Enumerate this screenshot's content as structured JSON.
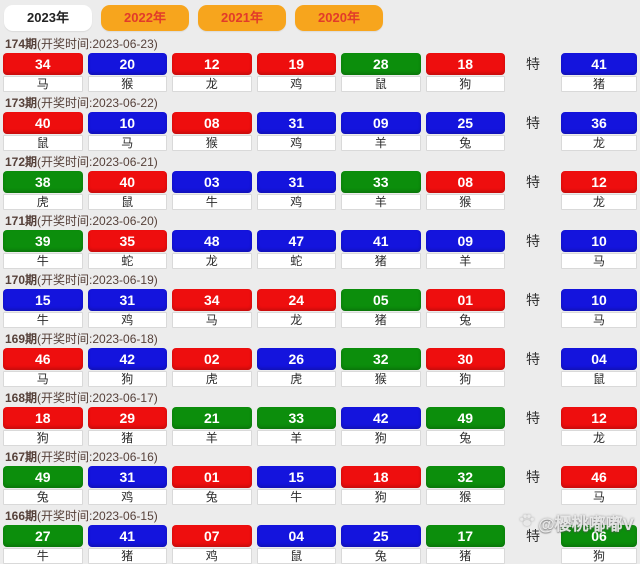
{
  "tabs": [
    {
      "label": "2023年",
      "active": true
    },
    {
      "label": "2022年",
      "active": false
    },
    {
      "label": "2021年",
      "active": false
    },
    {
      "label": "2020年",
      "active": false
    }
  ],
  "special_label": "特",
  "watermark": {
    "icon": "paw-icon",
    "text": "@樱桃嘟嘟V"
  },
  "colors": {
    "tab_bg": "#f7a51d",
    "tab_text": "#e23b2a",
    "header_text": "#56413a",
    "ball": {
      "red": "#ee0e0e",
      "blue": "#1414dd",
      "green": "#0c8e0c"
    }
  },
  "draws": [
    {
      "period": "174期",
      "time_label": "(开奖时间:2023-06-23)",
      "numbers": [
        {
          "value": "34",
          "color": "red",
          "zodiac": "马"
        },
        {
          "value": "20",
          "color": "blue",
          "zodiac": "猴"
        },
        {
          "value": "12",
          "color": "red",
          "zodiac": "龙"
        },
        {
          "value": "19",
          "color": "red",
          "zodiac": "鸡"
        },
        {
          "value": "28",
          "color": "green",
          "zodiac": "鼠"
        },
        {
          "value": "18",
          "color": "red",
          "zodiac": "狗"
        }
      ],
      "special": {
        "value": "41",
        "color": "blue",
        "zodiac": "猪"
      }
    },
    {
      "period": "173期",
      "time_label": "(开奖时间:2023-06-22)",
      "numbers": [
        {
          "value": "40",
          "color": "red",
          "zodiac": "鼠"
        },
        {
          "value": "10",
          "color": "blue",
          "zodiac": "马"
        },
        {
          "value": "08",
          "color": "red",
          "zodiac": "猴"
        },
        {
          "value": "31",
          "color": "blue",
          "zodiac": "鸡"
        },
        {
          "value": "09",
          "color": "blue",
          "zodiac": "羊"
        },
        {
          "value": "25",
          "color": "blue",
          "zodiac": "兔"
        }
      ],
      "special": {
        "value": "36",
        "color": "blue",
        "zodiac": "龙"
      }
    },
    {
      "period": "172期",
      "time_label": "(开奖时间:2023-06-21)",
      "numbers": [
        {
          "value": "38",
          "color": "green",
          "zodiac": "虎"
        },
        {
          "value": "40",
          "color": "red",
          "zodiac": "鼠"
        },
        {
          "value": "03",
          "color": "blue",
          "zodiac": "牛"
        },
        {
          "value": "31",
          "color": "blue",
          "zodiac": "鸡"
        },
        {
          "value": "33",
          "color": "green",
          "zodiac": "羊"
        },
        {
          "value": "08",
          "color": "red",
          "zodiac": "猴"
        }
      ],
      "special": {
        "value": "12",
        "color": "red",
        "zodiac": "龙"
      }
    },
    {
      "period": "171期",
      "time_label": "(开奖时间:2023-06-20)",
      "numbers": [
        {
          "value": "39",
          "color": "green",
          "zodiac": "牛"
        },
        {
          "value": "35",
          "color": "red",
          "zodiac": "蛇"
        },
        {
          "value": "48",
          "color": "blue",
          "zodiac": "龙"
        },
        {
          "value": "47",
          "color": "blue",
          "zodiac": "蛇"
        },
        {
          "value": "41",
          "color": "blue",
          "zodiac": "猪"
        },
        {
          "value": "09",
          "color": "blue",
          "zodiac": "羊"
        }
      ],
      "special": {
        "value": "10",
        "color": "blue",
        "zodiac": "马"
      }
    },
    {
      "period": "170期",
      "time_label": "(开奖时间:2023-06-19)",
      "numbers": [
        {
          "value": "15",
          "color": "blue",
          "zodiac": "牛"
        },
        {
          "value": "31",
          "color": "blue",
          "zodiac": "鸡"
        },
        {
          "value": "34",
          "color": "red",
          "zodiac": "马"
        },
        {
          "value": "24",
          "color": "red",
          "zodiac": "龙"
        },
        {
          "value": "05",
          "color": "green",
          "zodiac": "猪"
        },
        {
          "value": "01",
          "color": "red",
          "zodiac": "兔"
        }
      ],
      "special": {
        "value": "10",
        "color": "blue",
        "zodiac": "马"
      }
    },
    {
      "period": "169期",
      "time_label": "(开奖时间:2023-06-18)",
      "numbers": [
        {
          "value": "46",
          "color": "red",
          "zodiac": "马"
        },
        {
          "value": "42",
          "color": "blue",
          "zodiac": "狗"
        },
        {
          "value": "02",
          "color": "red",
          "zodiac": "虎"
        },
        {
          "value": "26",
          "color": "blue",
          "zodiac": "虎"
        },
        {
          "value": "32",
          "color": "green",
          "zodiac": "猴"
        },
        {
          "value": "30",
          "color": "red",
          "zodiac": "狗"
        }
      ],
      "special": {
        "value": "04",
        "color": "blue",
        "zodiac": "鼠"
      }
    },
    {
      "period": "168期",
      "time_label": "(开奖时间:2023-06-17)",
      "numbers": [
        {
          "value": "18",
          "color": "red",
          "zodiac": "狗"
        },
        {
          "value": "29",
          "color": "red",
          "zodiac": "猪"
        },
        {
          "value": "21",
          "color": "green",
          "zodiac": "羊"
        },
        {
          "value": "33",
          "color": "green",
          "zodiac": "羊"
        },
        {
          "value": "42",
          "color": "blue",
          "zodiac": "狗"
        },
        {
          "value": "49",
          "color": "green",
          "zodiac": "兔"
        }
      ],
      "special": {
        "value": "12",
        "color": "red",
        "zodiac": "龙"
      }
    },
    {
      "period": "167期",
      "time_label": "(开奖时间:2023-06-16)",
      "numbers": [
        {
          "value": "49",
          "color": "green",
          "zodiac": "兔"
        },
        {
          "value": "31",
          "color": "blue",
          "zodiac": "鸡"
        },
        {
          "value": "01",
          "color": "red",
          "zodiac": "兔"
        },
        {
          "value": "15",
          "color": "blue",
          "zodiac": "牛"
        },
        {
          "value": "18",
          "color": "red",
          "zodiac": "狗"
        },
        {
          "value": "32",
          "color": "green",
          "zodiac": "猴"
        }
      ],
      "special": {
        "value": "46",
        "color": "red",
        "zodiac": "马"
      }
    },
    {
      "period": "166期",
      "time_label": "(开奖时间:2023-06-15)",
      "numbers": [
        {
          "value": "27",
          "color": "green",
          "zodiac": "牛"
        },
        {
          "value": "41",
          "color": "blue",
          "zodiac": "猪"
        },
        {
          "value": "07",
          "color": "red",
          "zodiac": "鸡"
        },
        {
          "value": "04",
          "color": "blue",
          "zodiac": "鼠"
        },
        {
          "value": "25",
          "color": "blue",
          "zodiac": "兔"
        },
        {
          "value": "17",
          "color": "green",
          "zodiac": "猪"
        }
      ],
      "special": {
        "value": "06",
        "color": "green",
        "zodiac": "狗"
      }
    }
  ]
}
